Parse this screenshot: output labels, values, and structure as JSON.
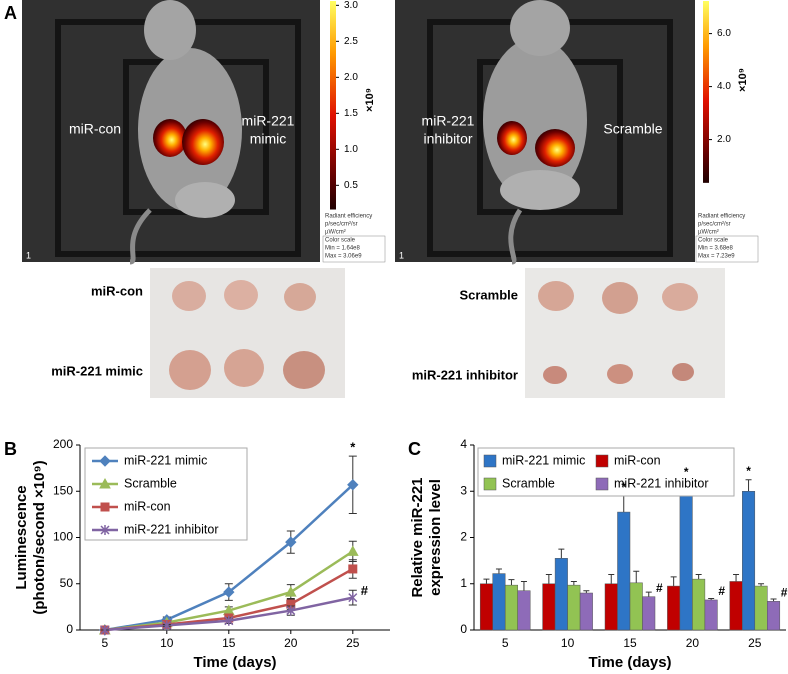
{
  "panel_a": {
    "label": "A",
    "images": [
      {
        "labels": [
          [
            "miR-con"
          ],
          [
            "miR-221",
            "mimic"
          ]
        ],
        "image_id": "1",
        "colorbar": {
          "lim": [
            0.164,
            3.06
          ],
          "ticks": [
            {
              "value": 3,
              "label": "3.0"
            },
            {
              "value": 2.5,
              "label": "2.5"
            },
            {
              "value": 2,
              "label": "2.0"
            },
            {
              "value": 1.5,
              "label": "1.5"
            },
            {
              "value": 1,
              "label": "1.0"
            },
            {
              "value": 0.5,
              "label": "0.5"
            }
          ],
          "unit": "×10⁹"
        },
        "scale_legend": [
          "Radiant efficiency",
          "p/sec/cm²/sr",
          "µW/cm²",
          "Color scale",
          "Min = 1.64e8",
          "Max = 3.06e9"
        ]
      },
      {
        "labels": [
          [
            "miR-221",
            "inhibitor"
          ],
          [
            "Scramble"
          ]
        ],
        "image_id": "1",
        "colorbar": {
          "lim": [
            0.368,
            7.23
          ],
          "ticks": [
            {
              "value": 6,
              "label": "6.0"
            },
            {
              "value": 4,
              "label": "4.0"
            },
            {
              "value": 2,
              "label": "2.0"
            }
          ],
          "unit": "×10⁹"
        },
        "scale_legend": [
          "Radiant efficiency",
          "p/sec/cm²/sr",
          "µW/cm²",
          "Color scale",
          "Min = 3.68e8",
          "Max = 7.23e9"
        ]
      }
    ],
    "tumors": [
      {
        "rows": [
          "miR-con",
          "miR-221 mimic"
        ]
      },
      {
        "rows": [
          "Scramble",
          "miR-221 inhibitor"
        ]
      }
    ]
  },
  "chart_data": [
    {
      "type": "line",
      "label": "B",
      "x_label": "Time (days)",
      "y_label": [
        "Luminescence",
        "(photon/second ×10⁹)"
      ],
      "x": [
        5,
        10,
        15,
        20,
        25
      ],
      "xlim": [
        3,
        28
      ],
      "xticks": [
        5,
        10,
        15,
        20,
        25
      ],
      "ylim": [
        0,
        200
      ],
      "yticks": [
        0,
        50,
        100,
        150,
        200
      ],
      "series": [
        {
          "name": "miR-221 mimic",
          "color": "#4f81bd",
          "marker": "diamond",
          "values": [
            0,
            11,
            41,
            95,
            157
          ],
          "errors": [
            0,
            3,
            9,
            12,
            31
          ]
        },
        {
          "name": "Scramble",
          "color": "#9bbb59",
          "marker": "triangle",
          "values": [
            0,
            8,
            21,
            41,
            85
          ],
          "errors": [
            0,
            2,
            4,
            8,
            11
          ]
        },
        {
          "name": "miR-con",
          "color": "#c0504d",
          "marker": "square",
          "values": [
            0,
            6,
            13,
            28,
            66
          ],
          "errors": [
            0,
            2,
            4,
            6,
            10
          ]
        },
        {
          "name": "miR-221 inhibitor",
          "color": "#8064a2",
          "marker": "x",
          "values": [
            0,
            5,
            10,
            21,
            35
          ],
          "errors": [
            0,
            1,
            3,
            5,
            8
          ]
        }
      ],
      "annotations": [
        {
          "text": "*",
          "series": "miR-221 mimic",
          "x": 25,
          "position": "above"
        },
        {
          "text": "#",
          "series": "miR-221 inhibitor",
          "x": 25,
          "position": "right"
        }
      ]
    },
    {
      "type": "bar",
      "label": "C",
      "x_label": "Time (days)",
      "y_label": [
        "Relative miR-221",
        "expression level"
      ],
      "categories": [
        "5",
        "10",
        "15",
        "20",
        "25"
      ],
      "ylim": [
        0,
        4
      ],
      "yticks": [
        0,
        1,
        2,
        3,
        4
      ],
      "series": [
        {
          "name": "miR-con",
          "color": "#c00000",
          "values": [
            1.0,
            1.0,
            1.0,
            0.95,
            1.05
          ],
          "errors": [
            0.1,
            0.2,
            0.2,
            0.2,
            0.15
          ]
        },
        {
          "name": "miR-221 mimic",
          "color": "#2e75c6",
          "values": [
            1.22,
            1.55,
            2.55,
            2.93,
            3.0
          ],
          "errors": [
            0.1,
            0.2,
            0.35,
            0.3,
            0.25
          ]
        },
        {
          "name": "Scramble",
          "color": "#92c353",
          "values": [
            0.97,
            0.97,
            1.02,
            1.1,
            0.95
          ],
          "errors": [
            0.12,
            0.08,
            0.25,
            0.1,
            0.05
          ]
        },
        {
          "name": "miR-221 inhibitor",
          "color": "#8e6bb8",
          "values": [
            0.85,
            0.8,
            0.72,
            0.65,
            0.62
          ],
          "errors": [
            0.2,
            0.05,
            0.1,
            0.03,
            0.05
          ]
        }
      ],
      "annotations": [
        {
          "text": "*",
          "series": "miR-221 mimic",
          "category": "15",
          "position": "above"
        },
        {
          "text": "*",
          "series": "miR-221 mimic",
          "category": "20",
          "position": "above"
        },
        {
          "text": "*",
          "series": "miR-221 mimic",
          "category": "25",
          "position": "above"
        },
        {
          "text": "#",
          "series": "miR-221 inhibitor",
          "category": "15",
          "position": "right"
        },
        {
          "text": "#",
          "series": "miR-221 inhibitor",
          "category": "20",
          "position": "right"
        },
        {
          "text": "#",
          "series": "miR-221 inhibitor",
          "category": "25",
          "position": "right"
        }
      ]
    }
  ]
}
